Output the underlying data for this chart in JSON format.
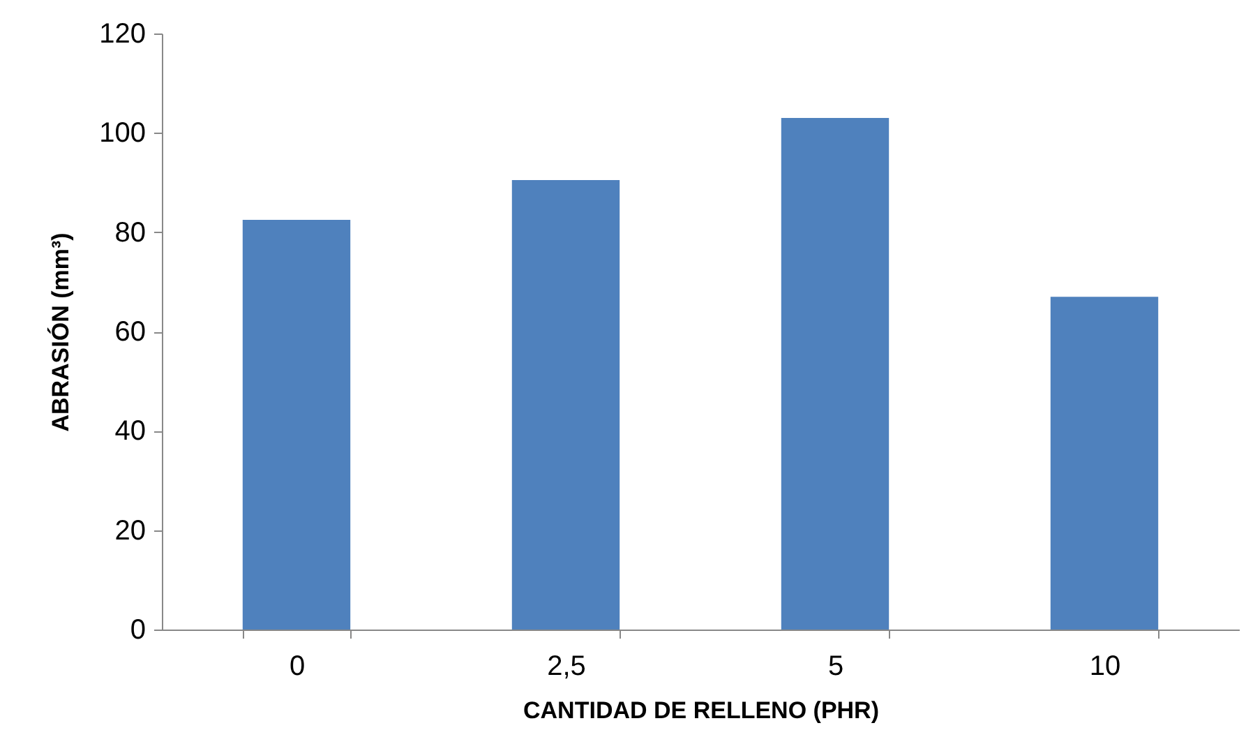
{
  "chart_data": {
    "type": "bar",
    "xlabel": "CANTIDAD DE RELLENO (PHR)",
    "ylabel": "ABRASIÓN (mm³)",
    "categories": [
      "0",
      "2,5",
      "5",
      "10"
    ],
    "values": [
      82.5,
      90.5,
      103,
      67
    ],
    "color": "#4f81bd",
    "ylim": [
      0,
      120
    ],
    "yticks": [
      0,
      20,
      40,
      60,
      80,
      100,
      120
    ],
    "grid": false
  }
}
